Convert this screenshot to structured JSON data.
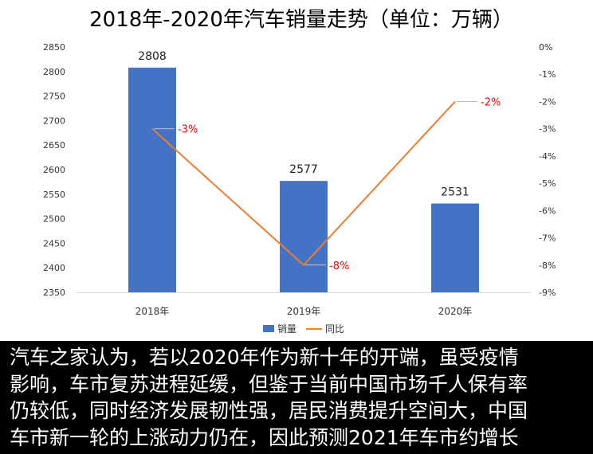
{
  "chart_data": {
    "type": "bar+line",
    "title": "2018年-2020年汽车销量走势（单位：万辆）",
    "categories": [
      "2018年",
      "2019年",
      "2020年"
    ],
    "series": [
      {
        "name": "销量",
        "kind": "bar",
        "axis": "left",
        "values": [
          2808,
          2577,
          2531
        ],
        "labels": [
          "2808",
          "2577",
          "2531"
        ],
        "color": "#4472C4"
      },
      {
        "name": "同比",
        "kind": "line",
        "axis": "right",
        "values": [
          -3,
          -8,
          -2
        ],
        "labels": [
          "-3%",
          "-8%",
          "-2%"
        ],
        "color": "#ED7D31"
      }
    ],
    "y_left": {
      "ylim": [
        2350,
        2850
      ],
      "ticks": [
        "2350",
        "2400",
        "2450",
        "2500",
        "2550",
        "2600",
        "2650",
        "2700",
        "2750",
        "2800",
        "2850"
      ]
    },
    "y_right": {
      "ylim": [
        -9,
        0
      ],
      "ticks": [
        "0%",
        "-1%",
        "-2%",
        "-3%",
        "-4%",
        "-5%",
        "-6%",
        "-7%",
        "-8%",
        "-9%"
      ]
    },
    "grid": false,
    "legend": "bottom-center",
    "label_color": "#FF0000"
  },
  "caption": {
    "lines": [
      "汽车之家认为，若以2020年作为新十年的开端，虽受疫情",
      "影响，车市复苏进程延缓，但鉴于当前中国市场千人保有率",
      "仍较低，同时经济发展韧性强，居民消费提升空间大，中国",
      "车市新一轮的上涨动力仍在，因此预测2021年车市约增长"
    ]
  }
}
